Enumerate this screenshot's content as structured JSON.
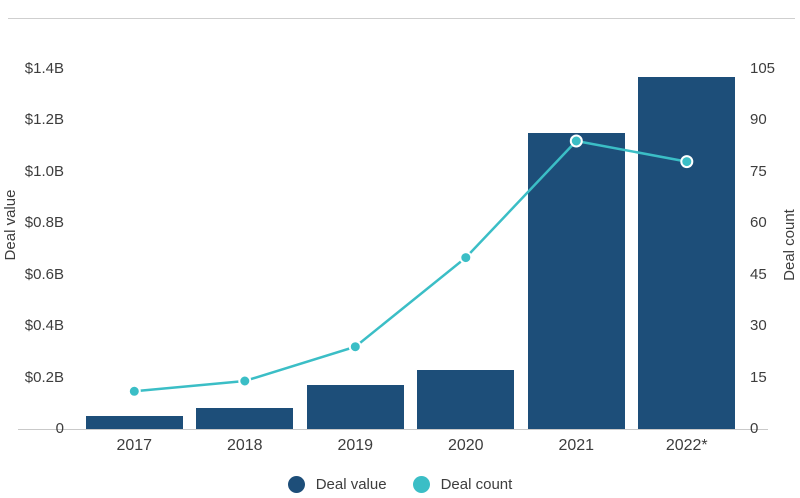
{
  "chart_data": {
    "type": "bar+line combo",
    "title": "",
    "categories": [
      "2017",
      "2018",
      "2019",
      "2020",
      "2021",
      "2022*"
    ],
    "series": [
      {
        "name": "Deal value",
        "type": "bar",
        "axis": "left",
        "unit": "$B",
        "values": [
          0.05,
          0.08,
          0.17,
          0.23,
          1.15,
          1.37
        ],
        "color": "#1d4e79"
      },
      {
        "name": "Deal count",
        "type": "line",
        "axis": "right",
        "values": [
          11,
          14,
          24,
          50,
          84,
          78
        ],
        "color": "#3bbec6",
        "marker": "circle-white-ring"
      }
    ],
    "left_axis": {
      "label": "Deal value",
      "min": 0,
      "max": 1.4,
      "tick_step": 0.2,
      "tick_labels": [
        "0",
        "$0.2B",
        "$0.4B",
        "$0.6B",
        "$0.8B",
        "$1.0B",
        "$1.2B",
        "$1.4B"
      ]
    },
    "right_axis": {
      "label": "Deal count",
      "min": 0,
      "max": 105,
      "tick_step": 15,
      "tick_labels": [
        "0",
        "15",
        "30",
        "45",
        "60",
        "75",
        "90",
        "105"
      ]
    },
    "grid": false,
    "legend_position": "bottom-center",
    "legend": [
      {
        "label": "Deal value",
        "color": "#1d4e79"
      },
      {
        "label": "Deal count",
        "color": "#3bbec6"
      }
    ]
  },
  "colors": {
    "bar": "#1d4e79",
    "line": "#3bbec6",
    "marker_ring": "#ffffff",
    "axis_line": "#c9c9c9",
    "top_rule": "#cfcfcf",
    "text": "#3d3d3d",
    "background": "#ffffff"
  }
}
